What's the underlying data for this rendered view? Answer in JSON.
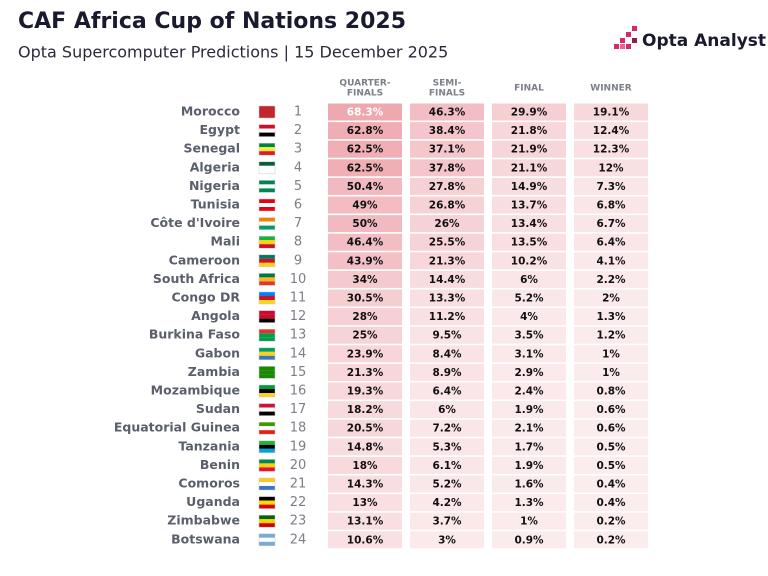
{
  "header": {
    "title": "CAF Africa Cup of Nations 2025",
    "subtitle": "Opta Supercomputer Predictions | 15 December 2025",
    "brand": "Opta Analyst"
  },
  "table": {
    "columns": [
      [
        "QUARTER-",
        "FINALS"
      ],
      [
        "SEMI-",
        "FINALS"
      ],
      [
        "FINAL"
      ],
      [
        "WINNER"
      ]
    ],
    "rows": [
      [
        "Morocco",
        "1",
        "68.3%",
        "46.3%",
        "29.9%",
        "19.1%"
      ],
      [
        "Egypt",
        "2",
        "62.8%",
        "38.4%",
        "21.8%",
        "12.4%"
      ],
      [
        "Senegal",
        "3",
        "62.5%",
        "37.1%",
        "21.9%",
        "12.3%"
      ],
      [
        "Algeria",
        "4",
        "62.5%",
        "37.8%",
        "21.1%",
        "12%"
      ],
      [
        "Nigeria",
        "5",
        "50.4%",
        "27.8%",
        "14.9%",
        "7.3%"
      ],
      [
        "Tunisia",
        "6",
        "49%",
        "26.8%",
        "13.7%",
        "6.8%"
      ],
      [
        "Côte d'Ivoire",
        "7",
        "50%",
        "26%",
        "13.4%",
        "6.7%"
      ],
      [
        "Mali",
        "8",
        "46.4%",
        "25.5%",
        "13.5%",
        "6.4%"
      ],
      [
        "Cameroon",
        "9",
        "43.9%",
        "21.3%",
        "10.2%",
        "4.1%"
      ],
      [
        "South Africa",
        "10",
        "34%",
        "14.4%",
        "6%",
        "2.2%"
      ],
      [
        "Congo DR",
        "11",
        "30.5%",
        "13.3%",
        "5.2%",
        "2%"
      ],
      [
        "Angola",
        "12",
        "28%",
        "11.2%",
        "4%",
        "1.3%"
      ],
      [
        "Burkina Faso",
        "13",
        "25%",
        "9.5%",
        "3.5%",
        "1.2%"
      ],
      [
        "Gabon",
        "14",
        "23.9%",
        "8.4%",
        "3.1%",
        "1%"
      ],
      [
        "Zambia",
        "15",
        "21.3%",
        "8.9%",
        "2.9%",
        "1%"
      ],
      [
        "Mozambique",
        "16",
        "19.3%",
        "6.4%",
        "2.4%",
        "0.8%"
      ],
      [
        "Sudan",
        "17",
        "18.2%",
        "6%",
        "1.9%",
        "0.6%"
      ],
      [
        "Equatorial Guinea",
        "18",
        "20.5%",
        "7.2%",
        "2.1%",
        "0.6%"
      ],
      [
        "Tanzania",
        "19",
        "14.8%",
        "5.3%",
        "1.7%",
        "0.5%"
      ],
      [
        "Benin",
        "20",
        "18%",
        "6.1%",
        "1.9%",
        "0.5%"
      ],
      [
        "Comoros",
        "21",
        "14.3%",
        "5.2%",
        "1.6%",
        "0.4%"
      ],
      [
        "Uganda",
        "22",
        "13%",
        "4.2%",
        "1.3%",
        "0.4%"
      ],
      [
        "Zimbabwe",
        "23",
        "13.1%",
        "3.7%",
        "1%",
        "0.2%"
      ],
      [
        "Botswana",
        "24",
        "10.6%",
        "3%",
        "0.9%",
        "0.2%"
      ]
    ]
  }
}
